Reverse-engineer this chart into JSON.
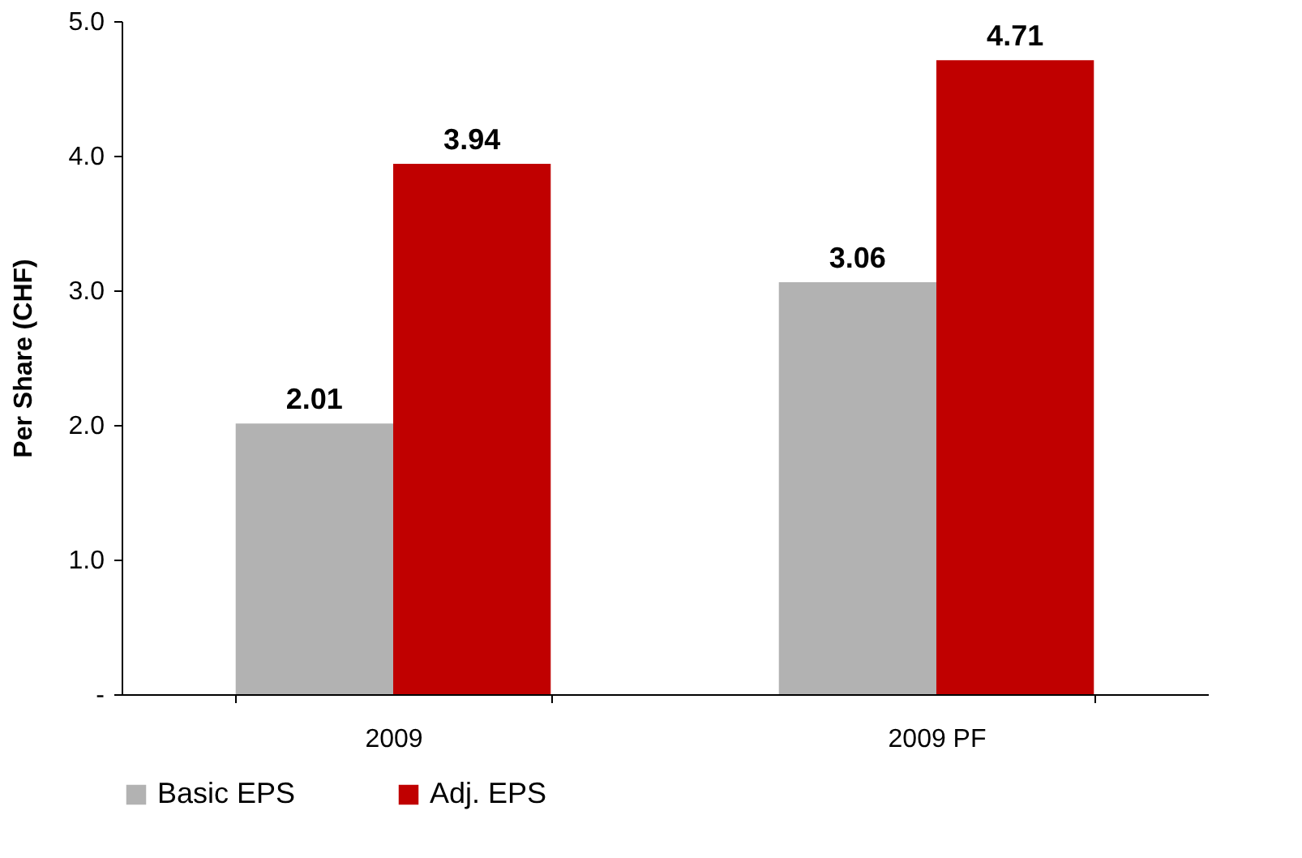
{
  "chart_data": {
    "type": "bar",
    "ylabel": "Per Share (CHF)",
    "categories": [
      "2009",
      "2009 PF"
    ],
    "series": [
      {
        "name": "Basic EPS",
        "color": "#b2b2b2",
        "values": [
          2.01,
          3.06
        ]
      },
      {
        "name": "Adj. EPS",
        "color": "#c00000",
        "values": [
          3.94,
          4.71
        ]
      }
    ],
    "ylim": [
      0,
      5
    ],
    "yticks": [
      {
        "value": 0,
        "label": "-"
      },
      {
        "value": 1,
        "label": "1.0"
      },
      {
        "value": 2,
        "label": "2.0"
      },
      {
        "value": 3,
        "label": "3.0"
      },
      {
        "value": 4,
        "label": "4.0"
      },
      {
        "value": 5,
        "label": "5.0"
      }
    ],
    "data_labels": true,
    "grid": false,
    "legend": "bottom"
  }
}
